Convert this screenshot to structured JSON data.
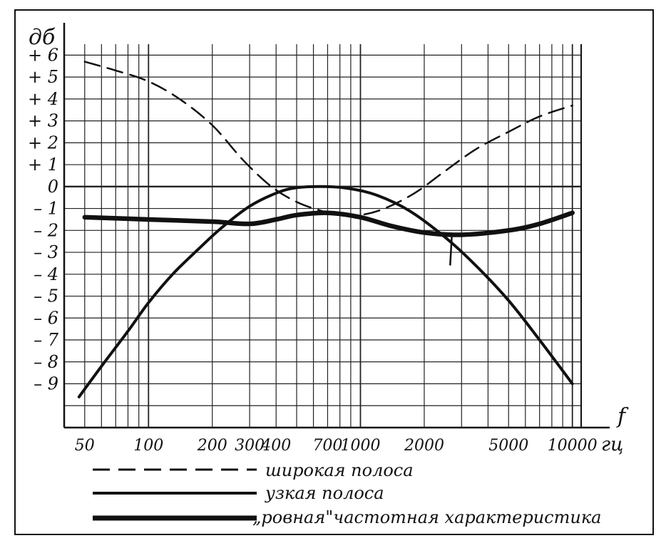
{
  "chart_data": {
    "type": "line",
    "title": "",
    "ylabel": "дб",
    "xlabel": "f",
    "xunit": "гц",
    "x_scale": "log",
    "xlim": [
      40,
      11000
    ],
    "ylim": [
      -11,
      6.5
    ],
    "x_ticks": [
      {
        "value": 50,
        "label": "50"
      },
      {
        "value": 100,
        "label": "100"
      },
      {
        "value": 200,
        "label": "200"
      },
      {
        "value": 300,
        "label": "300"
      },
      {
        "value": 400,
        "label": "400"
      },
      {
        "value": 700,
        "label": "700"
      },
      {
        "value": 1000,
        "label": "1000"
      },
      {
        "value": 2000,
        "label": "2000"
      },
      {
        "value": 5000,
        "label": "5000"
      },
      {
        "value": 10000,
        "label": "10000"
      }
    ],
    "y_ticks": [
      {
        "value": 6,
        "label": "+ 6"
      },
      {
        "value": 5,
        "label": "+ 5"
      },
      {
        "value": 4,
        "label": "+ 4"
      },
      {
        "value": 3,
        "label": "+ 3"
      },
      {
        "value": 2,
        "label": "+ 2"
      },
      {
        "value": 1,
        "label": "+ 1"
      },
      {
        "value": 0,
        "label": "0"
      },
      {
        "value": -1,
        "label": "– 1"
      },
      {
        "value": -2,
        "label": "– 2"
      },
      {
        "value": -3,
        "label": "– 3"
      },
      {
        "value": -4,
        "label": "– 4"
      },
      {
        "value": -5,
        "label": "– 5"
      },
      {
        "value": -6,
        "label": "– 6"
      },
      {
        "value": -7,
        "label": "– 7"
      },
      {
        "value": -8,
        "label": "– 8"
      },
      {
        "value": -9,
        "label": "– 9"
      }
    ],
    "grid": true,
    "legend_position": "bottom",
    "series": [
      {
        "name": "широкая полоса",
        "style": "dashed",
        "x": [
          50,
          70,
          100,
          140,
          200,
          280,
          380,
          500,
          650,
          800,
          1000,
          1300,
          1800,
          2500,
          3500,
          5000,
          7000,
          10000
        ],
        "y": [
          5.7,
          5.3,
          4.8,
          4.0,
          2.8,
          1.2,
          0.0,
          -0.7,
          -1.1,
          -1.3,
          -1.3,
          -1.0,
          -0.3,
          0.7,
          1.7,
          2.5,
          3.2,
          3.7
        ]
      },
      {
        "name": "узкая полоса",
        "style": "solid",
        "x": [
          47,
          60,
          80,
          100,
          130,
          170,
          220,
          300,
          400,
          500,
          700,
          900,
          1200,
          1700,
          2500,
          3500,
          5000,
          7000,
          10000
        ],
        "y": [
          -9.6,
          -8.2,
          -6.6,
          -5.3,
          -4.0,
          -2.9,
          -1.9,
          -0.9,
          -0.3,
          -0.05,
          0.0,
          -0.1,
          -0.4,
          -1.1,
          -2.3,
          -3.6,
          -5.2,
          -7.0,
          -9.0
        ],
        "note_values": {
          "peak_x": 700,
          "peak_y": 0.0
        }
      },
      {
        "name": "ровная\" частотная характеристика",
        "style": "solid-thick",
        "x": [
          50,
          100,
          200,
          300,
          400,
          500,
          700,
          1000,
          1400,
          2000,
          3000,
          5000,
          7000,
          10000
        ],
        "y": [
          -1.4,
          -1.5,
          -1.6,
          -1.7,
          -1.5,
          -1.3,
          -1.2,
          -1.4,
          -1.8,
          -2.1,
          -2.2,
          -2.0,
          -1.7,
          -1.2
        ]
      }
    ]
  },
  "legend": {
    "items": [
      {
        "label": "широкая полоса",
        "style": "dashed"
      },
      {
        "label": "узкая полоса",
        "style": "solid"
      },
      {
        "label": "„ровная\"частотная характеристика",
        "style": "solid-thick"
      }
    ]
  }
}
